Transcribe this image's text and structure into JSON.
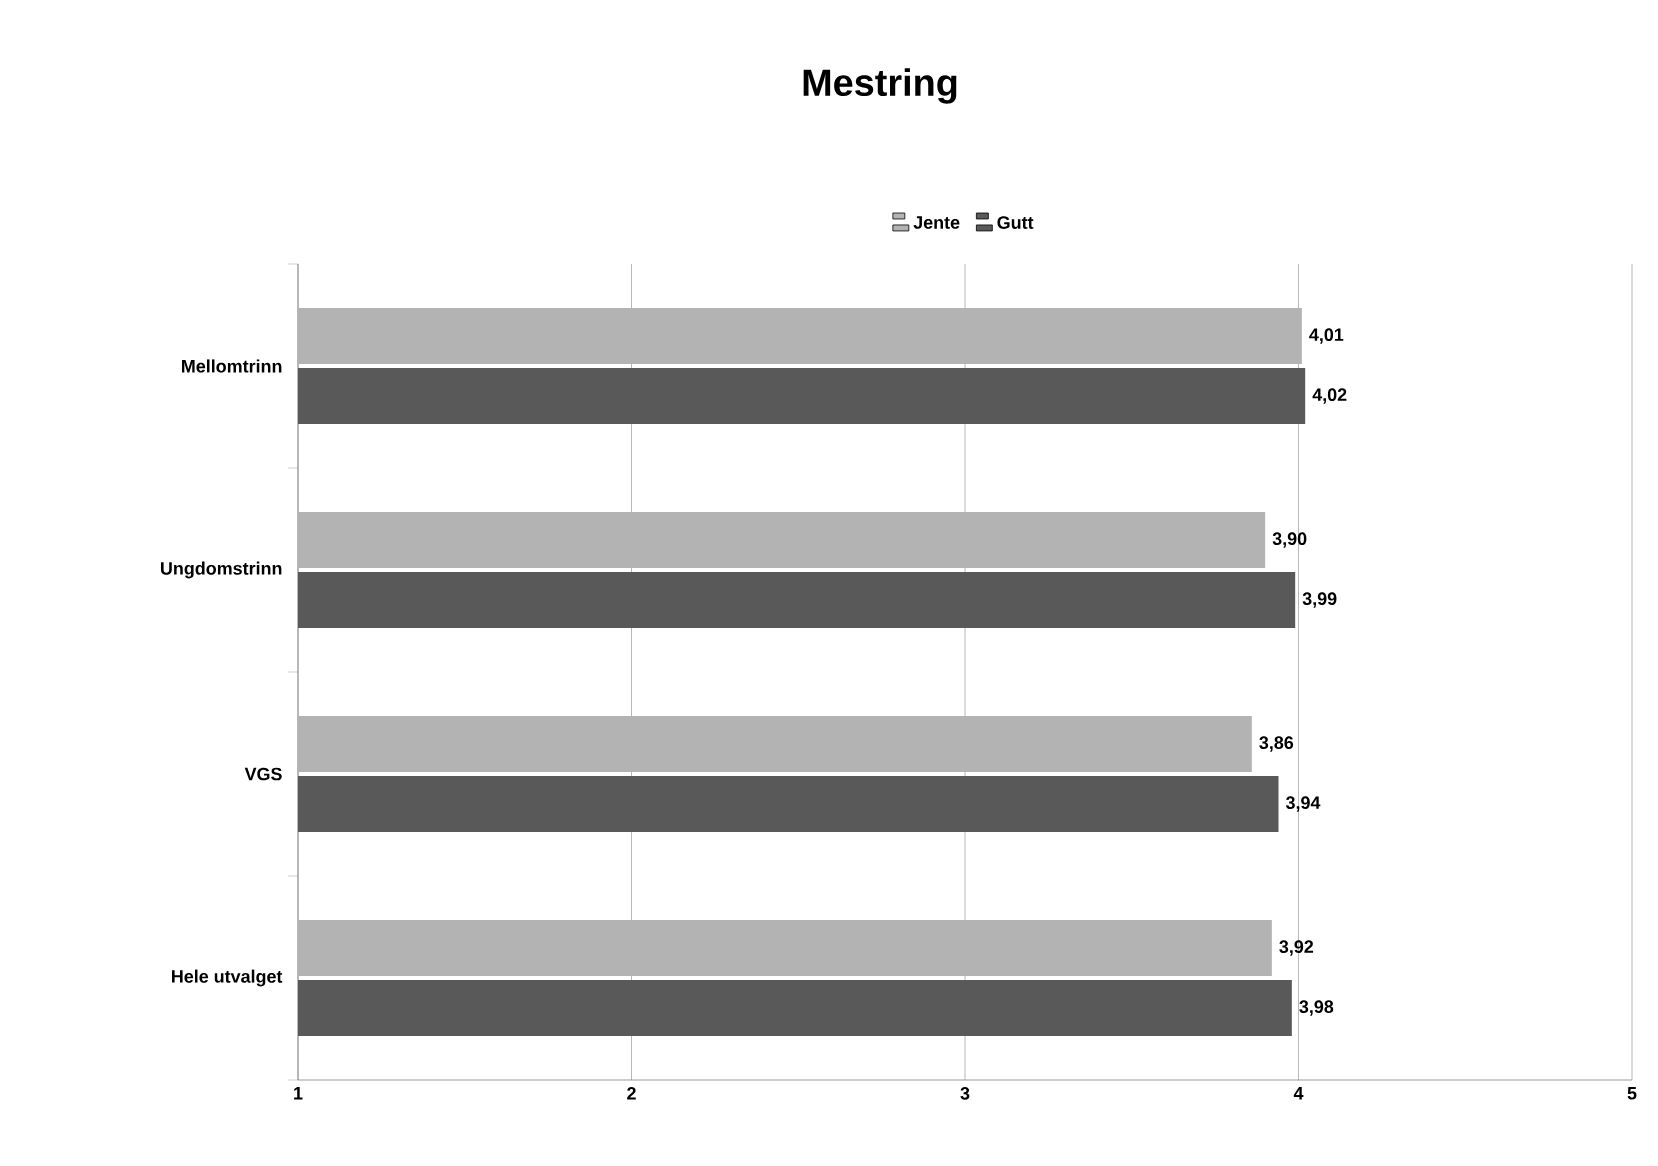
{
  "chart_data": {
    "type": "bar",
    "orientation": "horizontal",
    "title": "Mestring",
    "categories": [
      "Mellomtrinn",
      "Ungdomstrinn",
      "VGS",
      "Hele utvalget"
    ],
    "series": [
      {
        "name": "Jente",
        "color": "#b3b3b3",
        "values": [
          4.01,
          3.9,
          3.86,
          3.92
        ],
        "value_labels": [
          "4,01",
          "3,90",
          "3,86",
          "3,92"
        ]
      },
      {
        "name": "Gutt",
        "color": "#595959",
        "values": [
          4.02,
          3.99,
          3.94,
          3.98
        ],
        "value_labels": [
          "4,02",
          "3,99",
          "3,94",
          "3,98"
        ]
      }
    ],
    "xlim": [
      1,
      5
    ],
    "xticks": [
      1,
      2,
      3,
      4,
      5
    ],
    "grid": "x",
    "legend": "top"
  }
}
